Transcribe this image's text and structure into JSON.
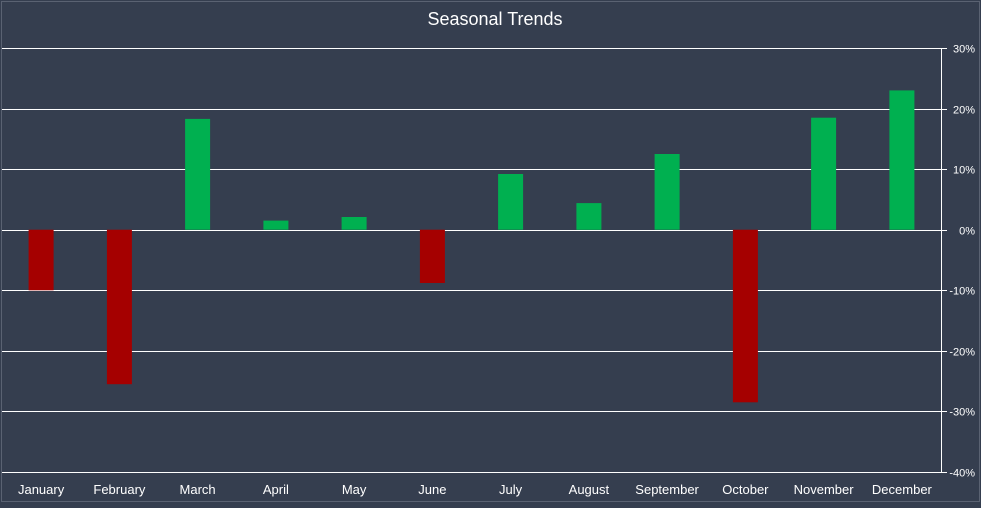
{
  "colors": {
    "background": "#353e4f",
    "gridline": "#ffffff",
    "positive": "#00b050",
    "negative": "#a50000",
    "text": "#ffffff"
  },
  "chart_data": {
    "type": "bar",
    "title": "Seasonal Trends",
    "xlabel": "",
    "ylabel": "",
    "categories": [
      "January",
      "February",
      "March",
      "April",
      "May",
      "June",
      "July",
      "August",
      "September",
      "October",
      "November",
      "December"
    ],
    "values": [
      -10,
      -25.5,
      18.3,
      1.5,
      2.1,
      -8.8,
      9.2,
      4.4,
      12.5,
      -28.5,
      18.5,
      23
    ],
    "ylim": [
      -40,
      30
    ],
    "yticks": [
      30,
      20,
      10,
      0,
      -10,
      -20,
      -30,
      -40
    ],
    "ytick_labels": [
      "30%",
      "20%",
      "10%",
      "0%",
      "-10%",
      "-20%",
      "-30%",
      "-40%"
    ],
    "y_axis_position": "right",
    "grid": true,
    "legend": "none"
  }
}
